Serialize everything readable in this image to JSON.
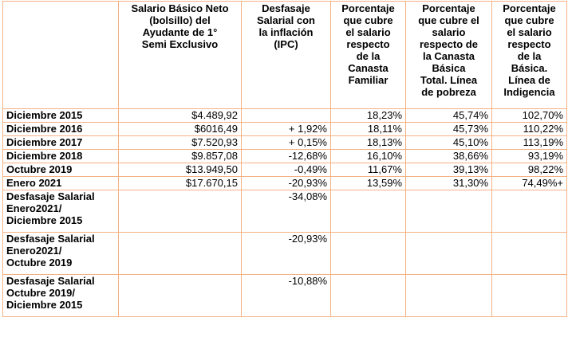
{
  "columns": [
    "",
    "Salario Básico Neto\n(bolsillo) del\nAyudante de 1°\nSemi Exclusivo",
    "Desfasaje\nSalarial con\nla inflación\n(IPC)",
    "Porcentaje\nque cubre\nel salario\nrespecto\nde la\nCanasta\nFamiliar",
    "Porcentaje\nque cubre el\nsalario\nrespecto de\nla Canasta\nBásica\nTotal. Línea\nde pobreza",
    "Porcentaje\nque cubre\nel salario\nrespecto\nde la\nBásica.\nLínea de\nIndigencia"
  ],
  "rows": [
    {
      "label": "Diciembre 2015",
      "salario": "$4.489,92",
      "desfasaje": "",
      "familiar": "18,23%",
      "pobreza": "45,74%",
      "indigencia": "102,70%"
    },
    {
      "label": "Diciembre 2016",
      "salario": "$6016,49",
      "desfasaje": "+ 1,92%",
      "familiar": "18,11%",
      "pobreza": "45,73%",
      "indigencia": "110,22%"
    },
    {
      "label": "Diciembre 2017",
      "salario": "$7.520,93",
      "desfasaje": "+ 0,15%",
      "familiar": "18,13%",
      "pobreza": "45,10%",
      "indigencia": "113,19%"
    },
    {
      "label": "Diciembre 2018",
      "salario": "$9.857,08",
      "desfasaje": "-12,68%",
      "familiar": "16,10%",
      "pobreza": "38,66%",
      "indigencia": "93,19%"
    },
    {
      "label": "Octubre 2019",
      "salario": "$13.949,50",
      "desfasaje": "-0,49%",
      "familiar": "11,67%",
      "pobreza": "39,13%",
      "indigencia": "98,22%"
    },
    {
      "label": "Enero 2021",
      "salario": "$17.670,15",
      "desfasaje": "-20,93%",
      "familiar": "13,59%",
      "pobreza": "31,30%",
      "indigencia": "74,49%+"
    }
  ],
  "summary": [
    {
      "label": "Desfasaje Salarial\nEnero2021/\nDiciembre 2015",
      "desfasaje": "-34,08%"
    },
    {
      "label": "Desfasaje Salarial\nEnero2021/\nOctubre 2019",
      "desfasaje": "-20,93%"
    },
    {
      "label": "Desfasaje Salarial\nOctubre 2019/\nDiciembre 2015",
      "desfasaje": "-10,88%"
    }
  ],
  "colors": {
    "border": "#f4b183",
    "text": "#000000",
    "background": "#ffffff"
  }
}
